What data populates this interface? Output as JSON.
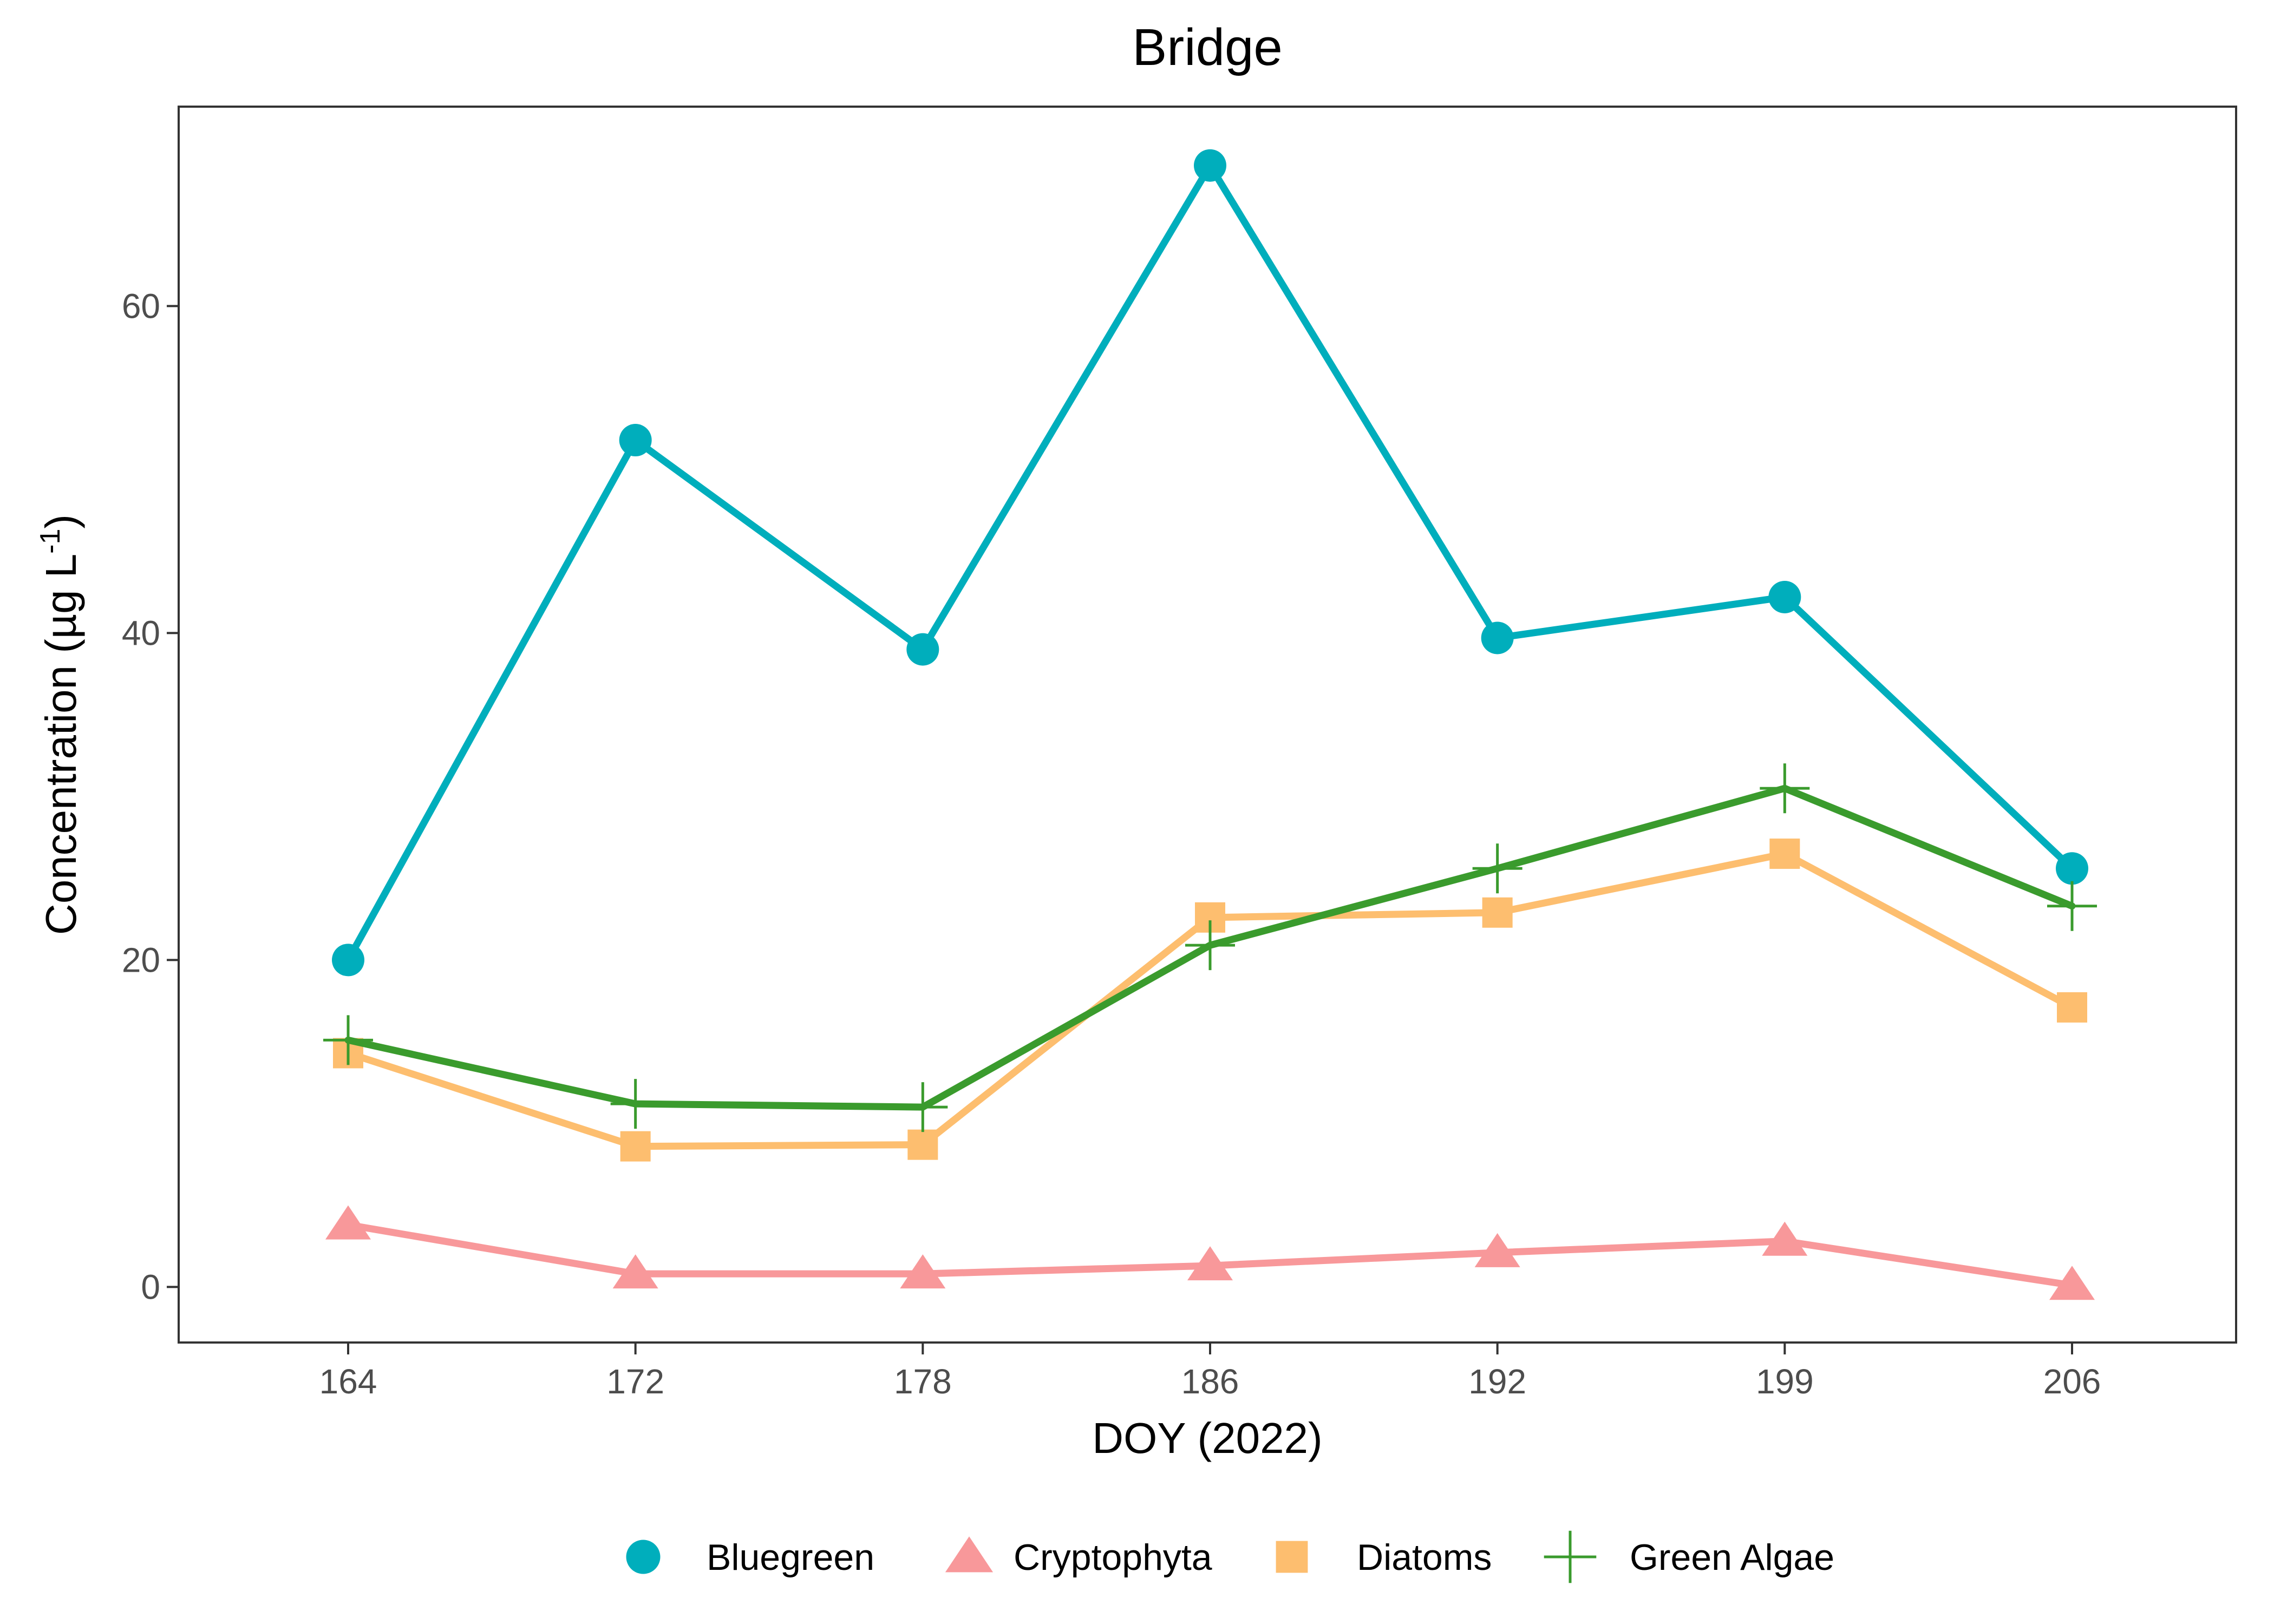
{
  "chart_data": {
    "type": "line",
    "title": "Bridge",
    "xlabel": "DOY (2022)",
    "ylabel": {
      "main": "Concentration (µg L",
      "sup": "-1",
      "close": ")"
    },
    "categories": [
      "164",
      "172",
      "178",
      "186",
      "192",
      "199",
      "206"
    ],
    "ylim": [
      -3.4,
      72.2
    ],
    "yticks": [
      0,
      20,
      40,
      60
    ],
    "grid": false,
    "legend_position": "bottom",
    "series": [
      {
        "name": "Bluegreen",
        "color": "#00aebc",
        "marker": "circle",
        "values": [
          20.0,
          51.8,
          39.0,
          68.6,
          39.7,
          42.2,
          25.6
        ]
      },
      {
        "name": "Cryptophyta",
        "color": "#f8989a",
        "marker": "triangle",
        "values": [
          3.8,
          0.8,
          0.8,
          1.3,
          2.1,
          2.8,
          0.1
        ]
      },
      {
        "name": "Diatoms",
        "color": "#fdbe6f",
        "marker": "square",
        "values": [
          14.3,
          8.6,
          8.7,
          22.6,
          22.9,
          26.5,
          17.1
        ]
      },
      {
        "name": "Green Algae",
        "color": "#3a9b2d",
        "marker": "plus",
        "values": [
          15.1,
          11.2,
          11.0,
          20.9,
          25.6,
          30.5,
          23.3
        ]
      }
    ]
  }
}
